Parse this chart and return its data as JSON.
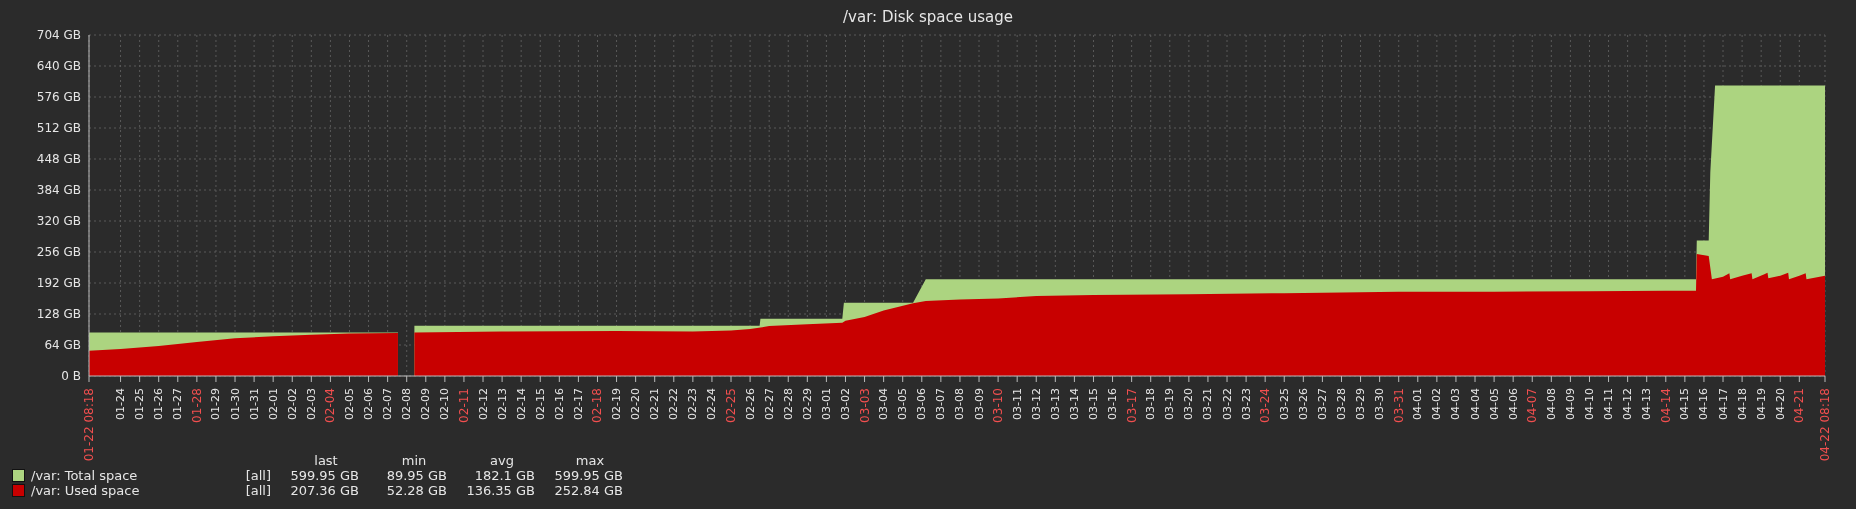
{
  "chart_data": {
    "type": "area",
    "title": "/var: Disk space usage",
    "xlim": [
      "--01-22T08:18",
      "--04-22T08:18"
    ],
    "xticks": [
      {
        "value": "--01-22T08:18",
        "label": "01-22 08:18"
      },
      {
        "value": "--01-24",
        "label": "01-24"
      },
      {
        "value": "--01-25",
        "label": "01-25"
      },
      {
        "value": "--01-26",
        "label": "01-26"
      },
      {
        "value": "--01-27",
        "label": "01-27"
      },
      {
        "value": "--01-28",
        "label": "01-28"
      },
      {
        "value": "--01-29",
        "label": "01-29"
      },
      {
        "value": "--01-30",
        "label": "01-30"
      },
      {
        "value": "--01-31",
        "label": "01-31"
      },
      {
        "value": "--02-01",
        "label": "02-01"
      },
      {
        "value": "--02-02",
        "label": "02-02"
      },
      {
        "value": "--02-03",
        "label": "02-03"
      },
      {
        "value": "--02-04",
        "label": "02-04"
      },
      {
        "value": "--02-05",
        "label": "02-05"
      },
      {
        "value": "--02-06",
        "label": "02-06"
      },
      {
        "value": "--02-07",
        "label": "02-07"
      },
      {
        "value": "--02-08",
        "label": "02-08"
      },
      {
        "value": "--02-09",
        "label": "02-09"
      },
      {
        "value": "--02-10",
        "label": "02-10"
      },
      {
        "value": "--02-11",
        "label": "02-11"
      },
      {
        "value": "--02-12",
        "label": "02-12"
      },
      {
        "value": "--02-13",
        "label": "02-13"
      },
      {
        "value": "--02-14",
        "label": "02-14"
      },
      {
        "value": "--02-15",
        "label": "02-15"
      },
      {
        "value": "--02-16",
        "label": "02-16"
      },
      {
        "value": "--02-17",
        "label": "02-17"
      },
      {
        "value": "--02-18",
        "label": "02-18"
      },
      {
        "value": "--02-19",
        "label": "02-19"
      },
      {
        "value": "--02-20",
        "label": "02-20"
      },
      {
        "value": "--02-21",
        "label": "02-21"
      },
      {
        "value": "--02-22",
        "label": "02-22"
      },
      {
        "value": "--02-23",
        "label": "02-23"
      },
      {
        "value": "--02-24",
        "label": "02-24"
      },
      {
        "value": "--02-25",
        "label": "02-25"
      },
      {
        "value": "--02-26",
        "label": "02-26"
      },
      {
        "value": "--02-27",
        "label": "02-27"
      },
      {
        "value": "--02-28",
        "label": "02-28"
      },
      {
        "value": "--02-29",
        "label": "02-29"
      },
      {
        "value": "--03-01",
        "label": "03-01"
      },
      {
        "value": "--03-02",
        "label": "03-02"
      },
      {
        "value": "--03-03",
        "label": "03-03"
      },
      {
        "value": "--03-04",
        "label": "03-04"
      },
      {
        "value": "--03-05",
        "label": "03-05"
      },
      {
        "value": "--03-06",
        "label": "03-06"
      },
      {
        "value": "--03-07",
        "label": "03-07"
      },
      {
        "value": "--03-08",
        "label": "03-08"
      },
      {
        "value": "--03-09",
        "label": "03-09"
      },
      {
        "value": "--03-10",
        "label": "03-10"
      },
      {
        "value": "--03-11",
        "label": "03-11"
      },
      {
        "value": "--03-12",
        "label": "03-12"
      },
      {
        "value": "--03-13",
        "label": "03-13"
      },
      {
        "value": "--03-14",
        "label": "03-14"
      },
      {
        "value": "--03-15",
        "label": "03-15"
      },
      {
        "value": "--03-16",
        "label": "03-16"
      },
      {
        "value": "--03-17",
        "label": "03-17"
      },
      {
        "value": "--03-18",
        "label": "03-18"
      },
      {
        "value": "--03-19",
        "label": "03-19"
      },
      {
        "value": "--03-20",
        "label": "03-20"
      },
      {
        "value": "--03-21",
        "label": "03-21"
      },
      {
        "value": "--03-22",
        "label": "03-22"
      },
      {
        "value": "--03-23",
        "label": "03-23"
      },
      {
        "value": "--03-24",
        "label": "03-24"
      },
      {
        "value": "--03-25",
        "label": "03-25"
      },
      {
        "value": "--03-26",
        "label": "03-26"
      },
      {
        "value": "--03-27",
        "label": "03-27"
      },
      {
        "value": "--03-28",
        "label": "03-28"
      },
      {
        "value": "--03-29",
        "label": "03-29"
      },
      {
        "value": "--03-30",
        "label": "03-30"
      },
      {
        "value": "--03-31",
        "label": "03-31"
      },
      {
        "value": "--04-01",
        "label": "04-01"
      },
      {
        "value": "--04-02",
        "label": "04-02"
      },
      {
        "value": "--04-03",
        "label": "04-03"
      },
      {
        "value": "--04-04",
        "label": "04-04"
      },
      {
        "value": "--04-05",
        "label": "04-05"
      },
      {
        "value": "--04-06",
        "label": "04-06"
      },
      {
        "value": "--04-07",
        "label": "04-07"
      },
      {
        "value": "--04-08",
        "label": "04-08"
      },
      {
        "value": "--04-09",
        "label": "04-09"
      },
      {
        "value": "--04-10",
        "label": "04-10"
      },
      {
        "value": "--04-11",
        "label": "04-11"
      },
      {
        "value": "--04-12",
        "label": "04-12"
      },
      {
        "value": "--04-13",
        "label": "04-13"
      },
      {
        "value": "--04-14",
        "label": "04-14"
      },
      {
        "value": "--04-15",
        "label": "04-15"
      },
      {
        "value": "--04-16",
        "label": "04-16"
      },
      {
        "value": "--04-17",
        "label": "04-17"
      },
      {
        "value": "--04-18",
        "label": "04-18"
      },
      {
        "value": "--04-19",
        "label": "04-19"
      },
      {
        "value": "--04-20",
        "label": "04-20"
      },
      {
        "value": "--04-21",
        "label": "04-21"
      },
      {
        "value": "--04-22T08:18",
        "label": "04-22 08:18"
      }
    ],
    "ylim": [
      0,
      704
    ],
    "yticks": [
      {
        "value": 0,
        "label": "0 B"
      },
      {
        "value": 64,
        "label": "64 GB"
      },
      {
        "value": 128,
        "label": "128 GB"
      },
      {
        "value": 192,
        "label": "192 GB"
      },
      {
        "value": 256,
        "label": "256 GB"
      },
      {
        "value": 320,
        "label": "320 GB"
      },
      {
        "value": 384,
        "label": "384 GB"
      },
      {
        "value": 448,
        "label": "448 GB"
      },
      {
        "value": 512,
        "label": "512 GB"
      },
      {
        "value": 576,
        "label": "576 GB"
      },
      {
        "value": 640,
        "label": "640 GB"
      },
      {
        "value": 704,
        "label": "704 GB"
      }
    ],
    "grid": true,
    "legend": "bottom left",
    "series": [
      {
        "name": "/var: Total space",
        "color": "#acd480",
        "x": [
          "--01-22T08:18",
          "--02-07T13:00",
          "--02-07T14:00",
          "--02-08T09:40",
          "--02-26T12:00",
          "--02-26T13:00",
          "--03-01T20:00",
          "--03-01T22:00",
          "--03-05T13:00",
          "--03-06T05:00",
          "--04-15T14:00",
          "--04-15T15:00",
          "--04-16T06:00",
          "--04-16T08:00",
          "--04-16T14:00",
          "--04-22T08:18"
        ],
        "values": [
          90,
          90,
          null,
          104,
          104,
          118,
          118,
          151,
          151,
          200,
          200,
          280,
          280,
          420,
          600,
          600
        ]
      },
      {
        "name": "/var: Used space",
        "color": "#c80000",
        "x": [
          "--01-22T08:18",
          "--01-24",
          "--01-26",
          "--01-28",
          "--01-30",
          "--02-01",
          "--02-03",
          "--02-05",
          "--02-07T13:00",
          "--02-07T14:00",
          "--02-08T09:40",
          "--02-13",
          "--02-19",
          "--02-23",
          "--02-25",
          "--02-26",
          "--02-27",
          "--02-29",
          "--03-01T20:00",
          "--03-02",
          "--03-03",
          "--03-04",
          "--03-05T13:00",
          "--03-06T05:00",
          "--03-08",
          "--03-10",
          "--03-12",
          "--03-15",
          "--03-20",
          "--03-25",
          "--03-31",
          "--04-05",
          "--04-10",
          "--04-14",
          "--04-15T14:00",
          "--04-15T15:00",
          "--04-16T06:00",
          "--04-16T10:00",
          "--04-17",
          "--04-17T08:00",
          "--04-17T09:00",
          "--04-18",
          "--04-18T12:00",
          "--04-18T13:00",
          "--04-19T04:00",
          "--04-19T08:00",
          "--04-19T09:00",
          "--04-20",
          "--04-20T10:00",
          "--04-20T11:00",
          "--04-21",
          "--04-21T08:00",
          "--04-21T09:00",
          "--04-22T08:18"
        ],
        "values": [
          52,
          56,
          62,
          70,
          78,
          82,
          85,
          88,
          89,
          null,
          90,
          92,
          93,
          92,
          94,
          97,
          103,
          107,
          110,
          114,
          122,
          135,
          150,
          155,
          158,
          160,
          165,
          167,
          169,
          171,
          174,
          174,
          175,
          176,
          176,
          252,
          248,
          200,
          205,
          212,
          200,
          207,
          212,
          200,
          210,
          213,
          202,
          207,
          213,
          200,
          207,
          212,
          200,
          207
        ]
      }
    ],
    "annotations": [
      "last",
      "min",
      "avg",
      "max",
      "[all]",
      "599.95 GB",
      "89.95 GB",
      "182.1 GB",
      "599.95 GB",
      "[all]",
      "207.36 GB",
      "52.28 GB",
      "136.35 GB",
      "252.84 GB"
    ]
  }
}
